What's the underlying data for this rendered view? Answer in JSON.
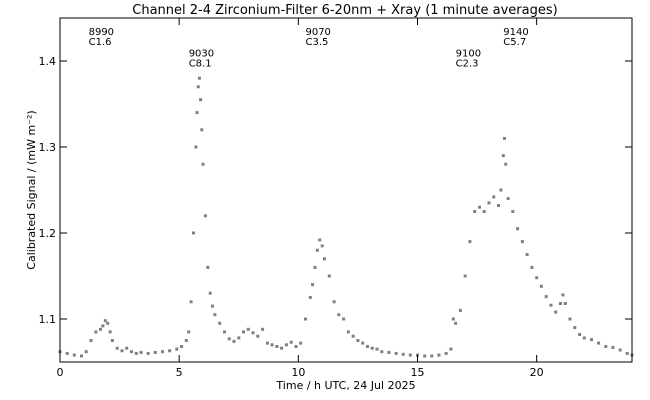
{
  "chart_data": {
    "type": "scatter",
    "title": "Channel 2-4   Zirconium-Filter   6-20nm + Xray   (1 minute averages)",
    "xlabel": "Time / h UTC, 24 Jul 2025",
    "ylabel": "Calibrated Signal / (mW m⁻²)",
    "xlim": [
      0,
      24
    ],
    "ylim": [
      1.05,
      1.45
    ],
    "xticks": [
      0,
      5,
      10,
      15,
      20
    ],
    "xtick_labels": [
      "0",
      "5",
      "10",
      "15",
      "20"
    ],
    "yticks": [
      1.1,
      1.2,
      1.3,
      1.4
    ],
    "ytick_labels": [
      "1.1",
      "1.2",
      "1.3",
      "1.4"
    ],
    "grid": false,
    "colors": {
      "points": "#808080",
      "axes": "#000000",
      "background": "#ffffff"
    },
    "annotations": [
      {
        "x": 1.2,
        "y": 1.43,
        "line1": "8990",
        "line2": "C1.6"
      },
      {
        "x": 5.4,
        "y": 1.405,
        "line1": "9030",
        "line2": "C8.1"
      },
      {
        "x": 10.3,
        "y": 1.43,
        "line1": "9070",
        "line2": "C3.5"
      },
      {
        "x": 16.6,
        "y": 1.405,
        "line1": "9100",
        "line2": "C2.3"
      },
      {
        "x": 18.6,
        "y": 1.43,
        "line1": "9140",
        "line2": "C5.7"
      }
    ],
    "series": [
      {
        "values": [
          [
            0.0,
            1.062
          ],
          [
            0.3,
            1.06
          ],
          [
            0.6,
            1.058
          ],
          [
            0.9,
            1.057
          ],
          [
            1.1,
            1.062
          ],
          [
            1.3,
            1.075
          ],
          [
            1.5,
            1.085
          ],
          [
            1.7,
            1.088
          ],
          [
            1.8,
            1.092
          ],
          [
            1.9,
            1.098
          ],
          [
            2.0,
            1.095
          ],
          [
            2.1,
            1.085
          ],
          [
            2.2,
            1.075
          ],
          [
            2.4,
            1.066
          ],
          [
            2.6,
            1.063
          ],
          [
            2.8,
            1.066
          ],
          [
            3.0,
            1.062
          ],
          [
            3.2,
            1.06
          ],
          [
            3.4,
            1.061
          ],
          [
            3.7,
            1.06
          ],
          [
            4.0,
            1.061
          ],
          [
            4.3,
            1.062
          ],
          [
            4.6,
            1.063
          ],
          [
            4.9,
            1.065
          ],
          [
            5.1,
            1.068
          ],
          [
            5.3,
            1.075
          ],
          [
            5.4,
            1.085
          ],
          [
            5.5,
            1.12
          ],
          [
            5.6,
            1.2
          ],
          [
            5.7,
            1.3
          ],
          [
            5.75,
            1.34
          ],
          [
            5.8,
            1.37
          ],
          [
            5.85,
            1.38
          ],
          [
            5.9,
            1.355
          ],
          [
            5.95,
            1.32
          ],
          [
            6.0,
            1.28
          ],
          [
            6.1,
            1.22
          ],
          [
            6.2,
            1.16
          ],
          [
            6.3,
            1.13
          ],
          [
            6.4,
            1.115
          ],
          [
            6.5,
            1.105
          ],
          [
            6.7,
            1.095
          ],
          [
            6.9,
            1.085
          ],
          [
            7.1,
            1.077
          ],
          [
            7.3,
            1.074
          ],
          [
            7.5,
            1.078
          ],
          [
            7.7,
            1.085
          ],
          [
            7.9,
            1.088
          ],
          [
            8.1,
            1.084
          ],
          [
            8.3,
            1.08
          ],
          [
            8.5,
            1.088
          ],
          [
            8.7,
            1.072
          ],
          [
            8.9,
            1.07
          ],
          [
            9.1,
            1.068
          ],
          [
            9.3,
            1.066
          ],
          [
            9.5,
            1.07
          ],
          [
            9.7,
            1.073
          ],
          [
            9.9,
            1.068
          ],
          [
            10.1,
            1.072
          ],
          [
            10.3,
            1.1
          ],
          [
            10.5,
            1.125
          ],
          [
            10.6,
            1.14
          ],
          [
            10.7,
            1.16
          ],
          [
            10.8,
            1.18
          ],
          [
            10.9,
            1.192
          ],
          [
            11.0,
            1.185
          ],
          [
            11.1,
            1.17
          ],
          [
            11.3,
            1.15
          ],
          [
            11.5,
            1.12
          ],
          [
            11.7,
            1.105
          ],
          [
            11.9,
            1.1
          ],
          [
            12.1,
            1.085
          ],
          [
            12.3,
            1.08
          ],
          [
            12.5,
            1.075
          ],
          [
            12.7,
            1.072
          ],
          [
            12.9,
            1.068
          ],
          [
            13.1,
            1.066
          ],
          [
            13.3,
            1.065
          ],
          [
            13.5,
            1.062
          ],
          [
            13.8,
            1.061
          ],
          [
            14.1,
            1.06
          ],
          [
            14.4,
            1.059
          ],
          [
            14.7,
            1.058
          ],
          [
            15.0,
            1.058
          ],
          [
            15.3,
            1.057
          ],
          [
            15.6,
            1.057
          ],
          [
            15.9,
            1.058
          ],
          [
            16.2,
            1.06
          ],
          [
            16.4,
            1.065
          ],
          [
            16.5,
            1.1
          ],
          [
            16.6,
            1.095
          ],
          [
            16.8,
            1.11
          ],
          [
            17.0,
            1.15
          ],
          [
            17.2,
            1.19
          ],
          [
            17.4,
            1.225
          ],
          [
            17.6,
            1.23
          ],
          [
            17.8,
            1.225
          ],
          [
            18.0,
            1.235
          ],
          [
            18.2,
            1.242
          ],
          [
            18.4,
            1.232
          ],
          [
            18.5,
            1.25
          ],
          [
            18.6,
            1.29
          ],
          [
            18.65,
            1.31
          ],
          [
            18.7,
            1.28
          ],
          [
            18.8,
            1.24
          ],
          [
            19.0,
            1.225
          ],
          [
            19.2,
            1.205
          ],
          [
            19.4,
            1.19
          ],
          [
            19.6,
            1.175
          ],
          [
            19.8,
            1.16
          ],
          [
            20.0,
            1.148
          ],
          [
            20.2,
            1.138
          ],
          [
            20.4,
            1.126
          ],
          [
            20.6,
            1.116
          ],
          [
            20.8,
            1.108
          ],
          [
            21.0,
            1.118
          ],
          [
            21.1,
            1.128
          ],
          [
            21.2,
            1.118
          ],
          [
            21.4,
            1.1
          ],
          [
            21.6,
            1.09
          ],
          [
            21.8,
            1.082
          ],
          [
            22.0,
            1.078
          ],
          [
            22.3,
            1.076
          ],
          [
            22.6,
            1.072
          ],
          [
            22.9,
            1.068
          ],
          [
            23.2,
            1.067
          ],
          [
            23.5,
            1.064
          ],
          [
            23.8,
            1.06
          ],
          [
            24.0,
            1.058
          ]
        ]
      }
    ]
  }
}
